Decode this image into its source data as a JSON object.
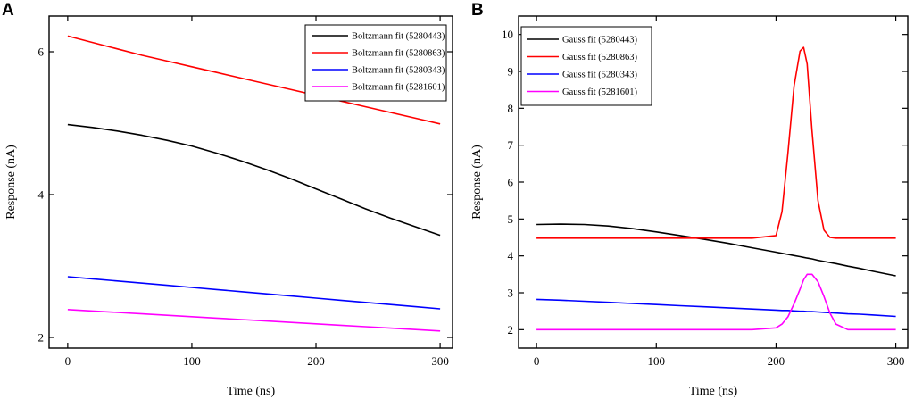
{
  "chart_data": [
    {
      "panel": "A",
      "type": "line",
      "xlabel": "Time (ns)",
      "ylabel": "Response (nA)",
      "xlim": [
        -15,
        310
      ],
      "ylim": [
        1.85,
        6.5
      ],
      "xticks": [
        0,
        100,
        200,
        300
      ],
      "yticks": [
        2,
        4,
        6
      ],
      "legend_position": "top-right",
      "x": [
        0,
        20,
        40,
        60,
        80,
        100,
        120,
        140,
        160,
        180,
        200,
        220,
        240,
        260,
        280,
        300
      ],
      "series": [
        {
          "name": "Boltzmann fit (5280443)",
          "color": "#000000",
          "values": [
            4.98,
            4.94,
            4.89,
            4.83,
            4.76,
            4.68,
            4.58,
            4.47,
            4.35,
            4.22,
            4.08,
            3.94,
            3.8,
            3.67,
            3.55,
            3.43
          ]
        },
        {
          "name": "Boltzmann fit (5280863)",
          "color": "#ff0000",
          "values": [
            6.22,
            6.13,
            6.04,
            5.95,
            5.87,
            5.79,
            5.71,
            5.63,
            5.55,
            5.47,
            5.39,
            5.31,
            5.23,
            5.15,
            5.07,
            4.99
          ]
        },
        {
          "name": "Boltzmann fit (5280343)",
          "color": "#0000ff",
          "values": [
            2.85,
            2.82,
            2.79,
            2.76,
            2.73,
            2.7,
            2.67,
            2.64,
            2.61,
            2.58,
            2.55,
            2.52,
            2.49,
            2.46,
            2.43,
            2.4
          ]
        },
        {
          "name": "Boltzmann fit (5281601)",
          "color": "#ff00ff",
          "values": [
            2.39,
            2.37,
            2.35,
            2.33,
            2.31,
            2.29,
            2.27,
            2.25,
            2.23,
            2.21,
            2.19,
            2.17,
            2.15,
            2.13,
            2.11,
            2.09
          ]
        }
      ]
    },
    {
      "panel": "B",
      "type": "line",
      "xlabel": "Time (ns)",
      "ylabel": "Response (nA)",
      "xlim": [
        -15,
        310
      ],
      "ylim": [
        1.5,
        10.5
      ],
      "xticks": [
        0,
        100,
        200,
        300
      ],
      "yticks": [
        2,
        3,
        4,
        5,
        6,
        7,
        8,
        9,
        10
      ],
      "legend_position": "top-left",
      "x": [
        0,
        20,
        40,
        60,
        80,
        100,
        120,
        140,
        160,
        180,
        200,
        205,
        210,
        215,
        220,
        223,
        226,
        230,
        235,
        240,
        245,
        250,
        260,
        270,
        280,
        300
      ],
      "series": [
        {
          "name": "Gauss fit (5280443)",
          "color": "#000000",
          "values": [
            4.85,
            4.86,
            4.85,
            4.81,
            4.74,
            4.65,
            4.55,
            4.45,
            4.34,
            4.22,
            4.1,
            4.07,
            4.04,
            4.01,
            3.98,
            3.96,
            3.94,
            3.92,
            3.88,
            3.85,
            3.82,
            3.79,
            3.72,
            3.66,
            3.59,
            3.46
          ]
        },
        {
          "name": "Gauss fit  (5280863)",
          "color": "#ff0000",
          "values": [
            4.48,
            4.48,
            4.48,
            4.48,
            4.48,
            4.48,
            4.48,
            4.48,
            4.48,
            4.48,
            4.55,
            5.2,
            6.8,
            8.6,
            9.55,
            9.65,
            9.2,
            7.4,
            5.5,
            4.7,
            4.5,
            4.48,
            4.48,
            4.48,
            4.48,
            4.48
          ]
        },
        {
          "name": "Gauss fit (5280343)",
          "color": "#0000ff",
          "values": [
            2.82,
            2.8,
            2.77,
            2.74,
            2.71,
            2.68,
            2.65,
            2.62,
            2.59,
            2.56,
            2.53,
            2.52,
            2.52,
            2.51,
            2.5,
            2.5,
            2.49,
            2.49,
            2.48,
            2.47,
            2.46,
            2.45,
            2.43,
            2.42,
            2.4,
            2.36
          ]
        },
        {
          "name": "Gauss fit  (5281601)",
          "color": "#ff00ff",
          "values": [
            2.0,
            2.0,
            2.0,
            2.0,
            2.0,
            2.0,
            2.0,
            2.0,
            2.0,
            2.0,
            2.05,
            2.15,
            2.35,
            2.7,
            3.1,
            3.35,
            3.5,
            3.5,
            3.3,
            2.9,
            2.45,
            2.15,
            2.0,
            2.0,
            2.0,
            2.0
          ]
        }
      ]
    }
  ]
}
